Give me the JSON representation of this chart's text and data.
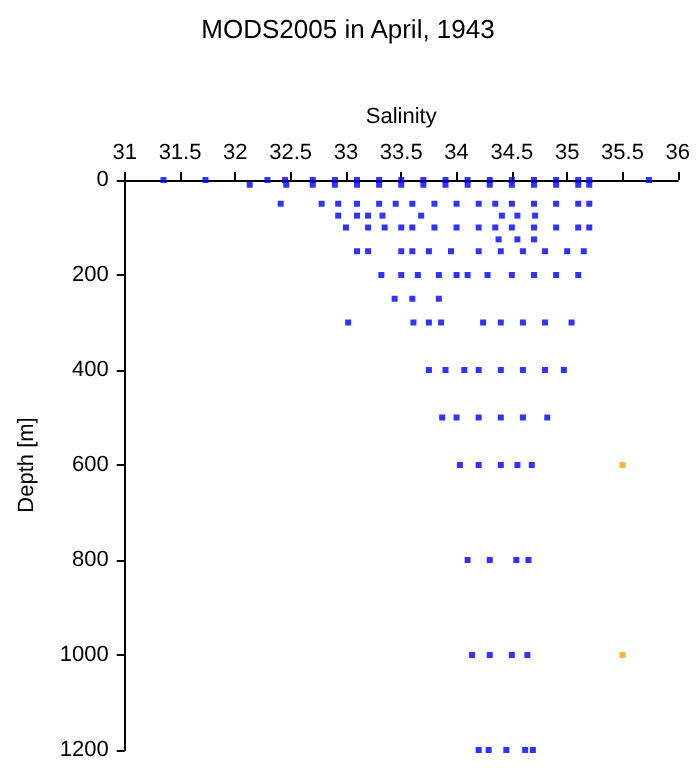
{
  "chart_data": {
    "type": "scatter",
    "title": "MODS2005 in April, 1943",
    "xlabel": "Salinity",
    "ylabel": "Depth [m]",
    "xlim": [
      31,
      36
    ],
    "xticks": [
      31,
      31.5,
      32,
      32.5,
      33,
      33.5,
      34,
      34.5,
      35,
      35.5,
      36
    ],
    "ylim": [
      1200,
      0
    ],
    "yticks": [
      0,
      200,
      400,
      600,
      800,
      1000,
      1200
    ],
    "grid": false,
    "marker": "square",
    "series": [
      {
        "color": "#0000ff",
        "x": [
          31.35,
          31.73,
          32.29,
          32.45,
          32.7,
          32.9,
          33.1,
          33.3,
          33.5,
          33.7,
          33.9,
          34.1,
          34.3,
          34.5,
          34.7,
          34.9,
          35.1,
          35.2,
          35.74,
          32.13,
          32.46,
          32.7,
          32.9,
          33.1,
          33.3,
          33.5,
          33.7,
          33.9,
          34.1,
          34.3,
          34.5,
          34.7,
          34.9,
          35.1,
          35.2,
          32.41,
          32.78,
          32.93,
          33.1,
          33.3,
          33.45,
          33.6,
          33.8,
          34.0,
          34.2,
          34.35,
          34.5,
          34.7,
          34.9,
          35.1,
          35.2,
          32.93,
          33.1,
          33.2,
          33.33,
          33.68,
          34.41,
          34.55,
          34.71,
          33.0,
          33.2,
          33.35,
          33.5,
          33.6,
          33.8,
          34.0,
          34.2,
          34.35,
          34.5,
          34.7,
          34.9,
          35.1,
          35.2,
          34.38,
          34.55,
          34.7,
          33.1,
          33.2,
          33.5,
          33.6,
          33.75,
          33.95,
          34.2,
          34.4,
          34.6,
          34.8,
          35.0,
          35.15,
          33.32,
          33.5,
          33.65,
          33.84,
          34.0,
          34.1,
          34.28,
          34.5,
          34.7,
          34.9,
          35.1,
          33.44,
          33.6,
          33.84,
          33.02,
          33.61,
          33.75,
          33.86,
          34.24,
          34.4,
          34.6,
          34.8,
          35.04,
          33.75,
          33.9,
          34.07,
          34.2,
          34.4,
          34.6,
          34.8,
          34.97,
          33.87,
          34.0,
          34.2,
          34.4,
          34.6,
          34.82,
          34.03,
          34.2,
          34.4,
          34.55,
          34.68,
          34.1,
          34.3,
          34.54,
          34.65,
          34.14,
          34.3,
          34.5,
          34.64,
          34.2,
          34.29,
          34.45,
          34.62,
          34.69
        ],
        "values": [
          0,
          0,
          0,
          0,
          0,
          0,
          0,
          0,
          0,
          0,
          0,
          0,
          0,
          0,
          0,
          0,
          0,
          0,
          0,
          10,
          10,
          10,
          10,
          10,
          10,
          10,
          10,
          10,
          10,
          10,
          10,
          10,
          10,
          10,
          10,
          50,
          50,
          50,
          50,
          50,
          50,
          50,
          50,
          50,
          50,
          50,
          50,
          50,
          50,
          50,
          50,
          75,
          75,
          75,
          75,
          75,
          75,
          75,
          75,
          100,
          100,
          100,
          100,
          100,
          100,
          100,
          100,
          100,
          100,
          100,
          100,
          100,
          100,
          125,
          125,
          125,
          150,
          150,
          150,
          150,
          150,
          150,
          150,
          150,
          150,
          150,
          150,
          150,
          200,
          200,
          200,
          200,
          200,
          200,
          200,
          200,
          200,
          200,
          200,
          250,
          250,
          250,
          300,
          300,
          300,
          300,
          300,
          300,
          300,
          300,
          300,
          400,
          400,
          400,
          400,
          400,
          400,
          400,
          400,
          500,
          500,
          500,
          500,
          500,
          500,
          600,
          600,
          600,
          600,
          600,
          800,
          800,
          800,
          800,
          1000,
          1000,
          1000,
          1000,
          1200,
          1200,
          1200,
          1200,
          1200
        ]
      },
      {
        "color": "#ffa500",
        "x": [
          35.5,
          35.5
        ],
        "values": [
          600,
          1000
        ]
      }
    ]
  }
}
